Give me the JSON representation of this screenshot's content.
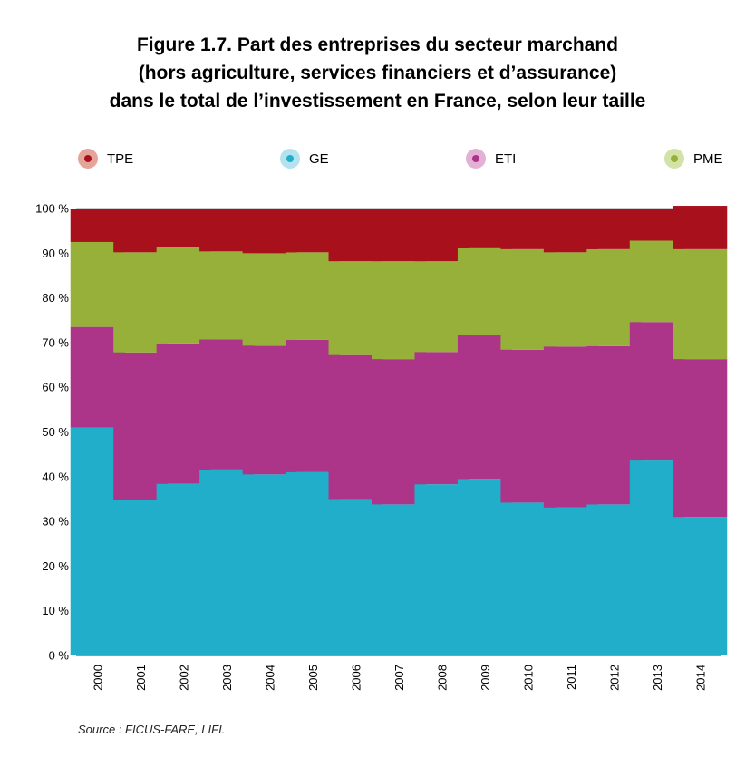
{
  "title_lines": [
    "Figure 1.7. Part des entreprises du secteur marchand",
    "(hors agriculture, services financiers et d’assurance)",
    "dans le total de l’investissement en France, selon leur taille"
  ],
  "source": "Source : FICUS-FARE, LIFI.",
  "legend": [
    {
      "label": "TPE",
      "color": "#a8101c",
      "halo": "#e4a49a"
    },
    {
      "label": "GE",
      "color": "#20aecb",
      "halo": "#b4e2ee"
    },
    {
      "label": "ETI",
      "color": "#ad3589",
      "halo": "#e3b1d3"
    },
    {
      "label": "PME",
      "color": "#96b03a",
      "halo": "#d3e2a6"
    }
  ],
  "chart_data": {
    "type": "bar",
    "stacked": true,
    "categories": [
      "2000",
      "2001",
      "2002",
      "2003",
      "2004",
      "2005",
      "2006",
      "2007",
      "2008",
      "2009",
      "2010",
      "2011",
      "2012",
      "2013",
      "2014"
    ],
    "series": [
      {
        "name": "GE",
        "color": "#20aecb",
        "values": [
          51,
          34.8,
          38.4,
          41.6,
          40.5,
          41,
          35,
          33.8,
          38.3,
          39.5,
          34.2,
          33.1,
          33.8,
          43.8,
          31
        ]
      },
      {
        "name": "ETI",
        "color": "#ad3589",
        "values": [
          22.5,
          33,
          31.4,
          29.1,
          28.8,
          29.6,
          32.2,
          32.5,
          29.6,
          32.1,
          34.2,
          36,
          35.4,
          30.8,
          35.3
        ]
      },
      {
        "name": "PME",
        "color": "#96b03a",
        "values": [
          19,
          22.4,
          21.5,
          19.7,
          20.7,
          19.6,
          21,
          21.9,
          20.3,
          19.5,
          22.5,
          21.1,
          21.7,
          18.2,
          24.6
        ]
      },
      {
        "name": "TPE",
        "color": "#a8101c",
        "values": [
          7.5,
          9.8,
          8.7,
          9.6,
          10,
          9.8,
          11.8,
          11.8,
          11.8,
          8.9,
          9.1,
          9.8,
          9.1,
          7.2,
          9.7
        ]
      }
    ],
    "ylim": [
      0,
      100
    ],
    "yticks": [
      "0 %",
      "10 %",
      "20 %",
      "30 %",
      "40 %",
      "50 %",
      "60 %",
      "70 %",
      "80 %",
      "90 %",
      "100 %"
    ],
    "grid": true,
    "legend_position": "top"
  }
}
